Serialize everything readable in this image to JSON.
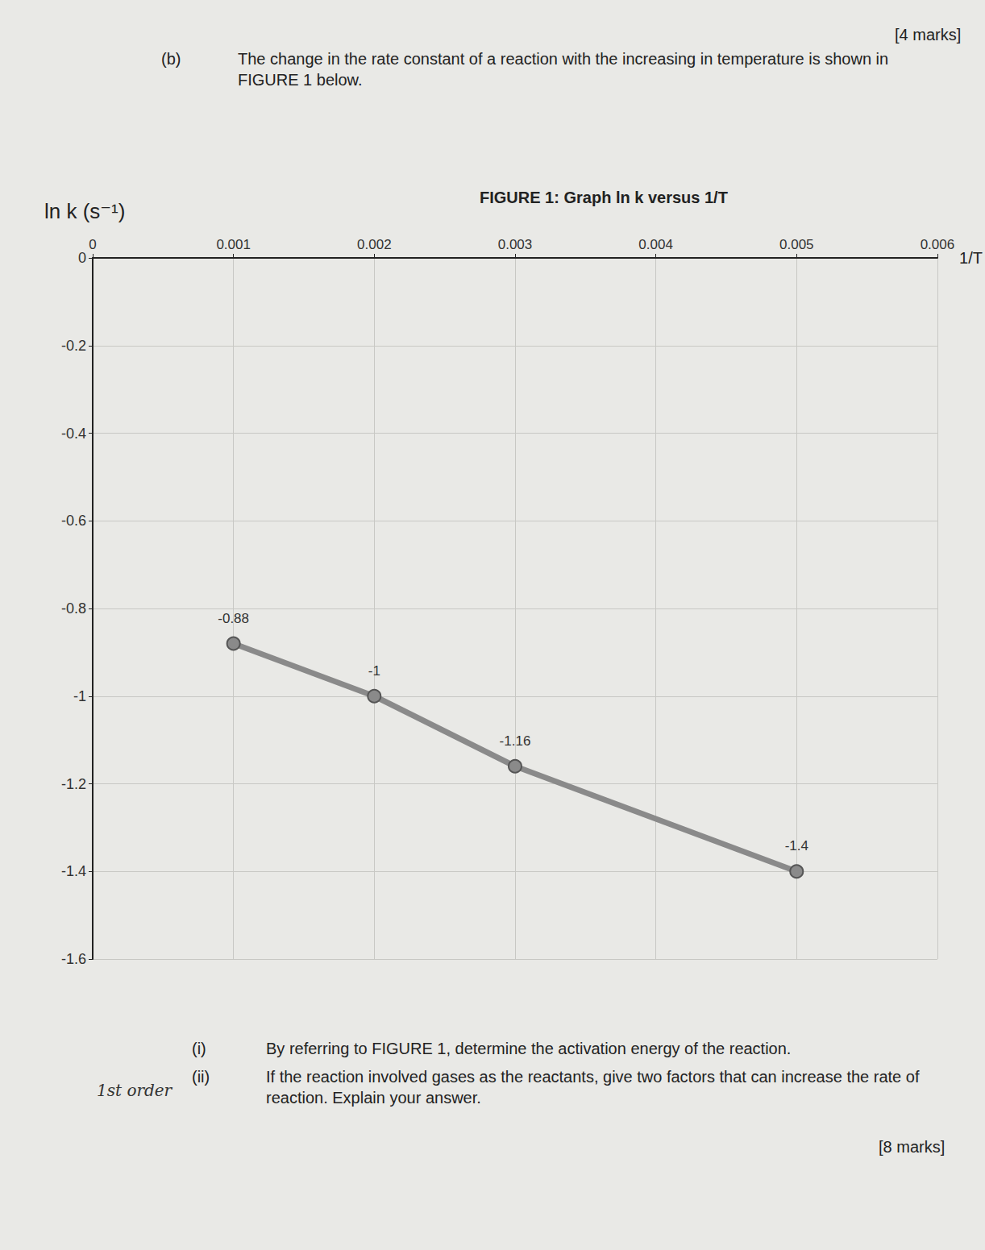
{
  "chart_data": {
    "type": "line",
    "title": "FIGURE 1: Graph ln k versus 1/T",
    "x_label": "1/T",
    "y_label": "ln k (s⁻¹)",
    "x": [
      0.001,
      0.002,
      0.003,
      0.005
    ],
    "values": [
      -0.88,
      -1,
      -1.16,
      -1.4
    ],
    "color": "#8a8a8a",
    "marker": "circle",
    "data_labels": true,
    "grid": true,
    "xlim": [
      0,
      0.006
    ],
    "xticks": [
      0,
      0.001,
      0.002,
      0.003,
      0.004,
      0.005,
      0.006
    ],
    "ylim": [
      -1.6,
      0
    ],
    "yticks": [
      0,
      -0.2,
      -0.4,
      -0.6,
      -0.8,
      -1,
      -1.2,
      -1.4,
      -1.6
    ],
    "annotations": [
      "(b)",
      "The change in the rate constant of a reaction with the increasing in temperature is shown in FIGURE 1 below.",
      "[4 marks]",
      "(i)",
      "By referring to FIGURE 1, determine the activation energy of the reaction.",
      "(ii)",
      "If the reaction involved gases as the reactants, give two factors that can increase the rate of reaction. Explain your answer.",
      "[8 marks]",
      "1st order"
    ]
  }
}
